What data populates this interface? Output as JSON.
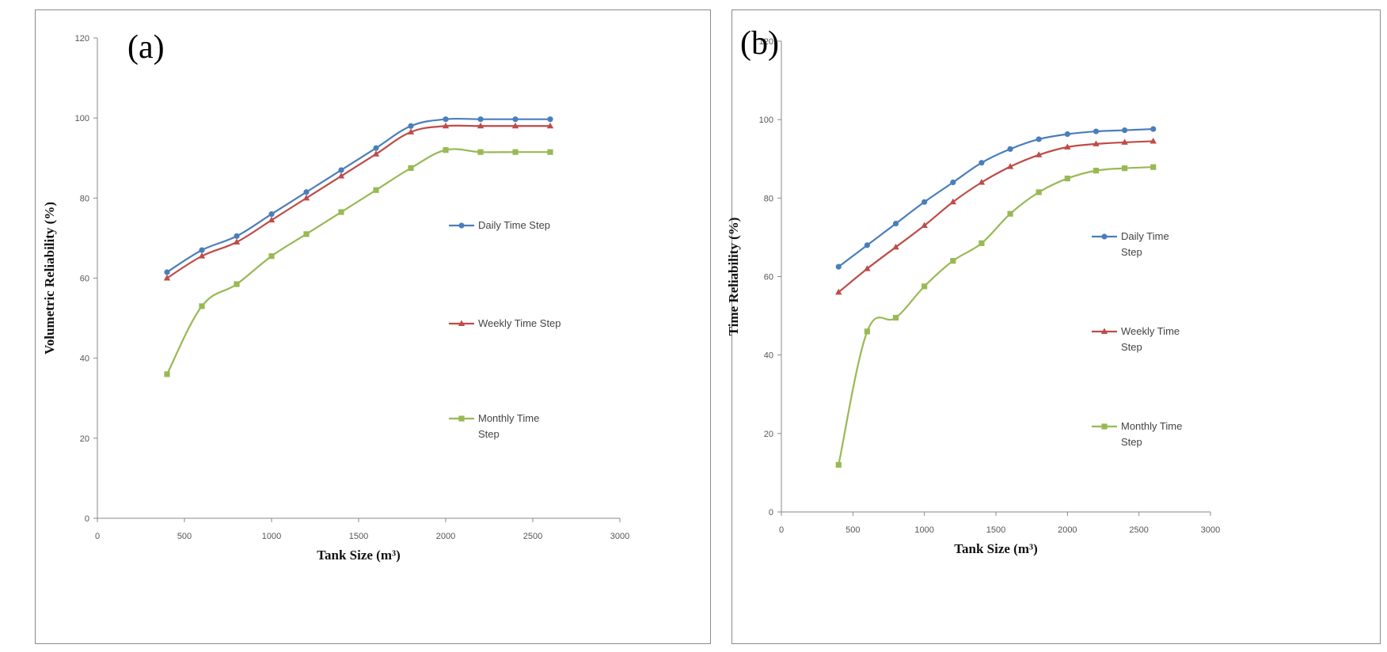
{
  "chart_data": [
    {
      "type": "line",
      "panel_label": "(a)",
      "xlabel": "Tank Size (m³)",
      "ylabel": "Volumetric Reliability (%)",
      "xlim": [
        0,
        3000
      ],
      "ylim": [
        0,
        120
      ],
      "xticks": [
        0,
        500,
        1000,
        1500,
        2000,
        2500,
        3000
      ],
      "yticks": [
        0,
        20,
        40,
        60,
        80,
        100,
        120
      ],
      "grid": false,
      "legend_placement": "right",
      "x": [
        400,
        600,
        800,
        1000,
        1200,
        1400,
        1600,
        1800,
        2000,
        2200,
        2400,
        2600
      ],
      "series": [
        {
          "name": "Daily Time Step",
          "color": "#4a7ebb",
          "marker": "circle",
          "values": [
            61.5,
            67,
            70.5,
            76,
            81.5,
            87,
            92.5,
            98,
            99.7,
            99.7,
            99.7,
            99.7
          ]
        },
        {
          "name": "Weekly Time Step",
          "color": "#be4b48",
          "marker": "triangle",
          "values": [
            60,
            65.5,
            69,
            74.5,
            80,
            85.5,
            91,
            96.5,
            98,
            98,
            98,
            98
          ]
        },
        {
          "name": "Monthly Time Step",
          "color": "#98b954",
          "marker": "square",
          "values": [
            36,
            53,
            58.5,
            65.5,
            71,
            76.5,
            82,
            87.5,
            92,
            91.5,
            91.5,
            91.5
          ]
        }
      ]
    },
    {
      "type": "line",
      "panel_label": "(b)",
      "xlabel": "Tank Size (m³)",
      "ylabel": "Time Reliability (%)",
      "xlim": [
        0,
        3000
      ],
      "ylim": [
        0,
        120
      ],
      "xticks": [
        0,
        500,
        1000,
        1500,
        2000,
        2500,
        3000
      ],
      "yticks": [
        0,
        20,
        40,
        60,
        80,
        100,
        120
      ],
      "grid": false,
      "legend_placement": "right",
      "x": [
        400,
        600,
        800,
        1000,
        1200,
        1400,
        1600,
        1800,
        2000,
        2200,
        2400,
        2600
      ],
      "series": [
        {
          "name": "Daily Time Step",
          "color": "#4a7ebb",
          "marker": "circle",
          "values": [
            62.5,
            68,
            73.5,
            79,
            84,
            89,
            92.5,
            95,
            96.3,
            97,
            97.3,
            97.6
          ]
        },
        {
          "name": "Weekly Time Step",
          "color": "#be4b48",
          "marker": "triangle",
          "values": [
            56,
            62,
            67.5,
            73,
            79,
            84,
            88,
            91,
            93,
            93.8,
            94.2,
            94.5
          ]
        },
        {
          "name": "Monthly Time Step",
          "color": "#98b954",
          "marker": "square",
          "values": [
            12,
            46,
            49.5,
            57.5,
            64,
            68.5,
            76,
            81.5,
            85,
            87,
            87.6,
            87.9
          ]
        }
      ]
    }
  ]
}
